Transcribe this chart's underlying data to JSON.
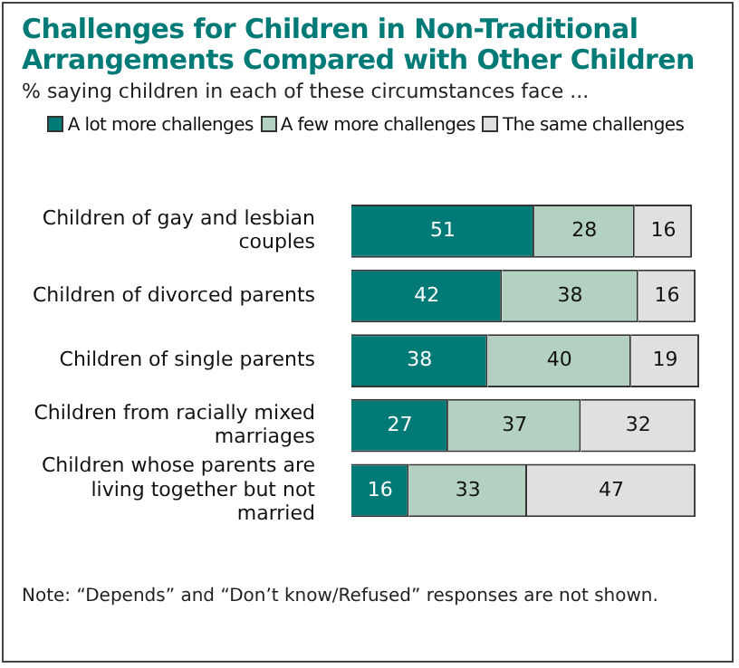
{
  "chart_data": {
    "type": "bar",
    "orientation": "horizontal",
    "stacked": true,
    "title": "Challenges for Children in Non-Traditional Arrangements Compared with Other Children",
    "subtitle": "% saying children in each of these circumstances face ...",
    "categories": [
      "Children of gay and lesbian couples",
      "Children of divorced parents",
      "Children of single parents",
      "Children from racially mixed marriages",
      "Children whose parents are living together but not married"
    ],
    "series": [
      {
        "name": "A lot more challenges",
        "color": "#007a76",
        "values": [
          51,
          42,
          38,
          27,
          16
        ]
      },
      {
        "name": "A few more challenges",
        "color": "#b3d1c1",
        "values": [
          28,
          38,
          40,
          37,
          33
        ]
      },
      {
        "name": "The same challenges",
        "color": "#e0e0e0",
        "values": [
          16,
          16,
          19,
          32,
          47
        ]
      }
    ],
    "xlim": [
      0,
      98
    ],
    "tick_labels": false,
    "legend": "top",
    "data_labels": true,
    "annotations": [
      "Note: “Depends” and “Don’t know/Refused” responses are not shown."
    ]
  }
}
